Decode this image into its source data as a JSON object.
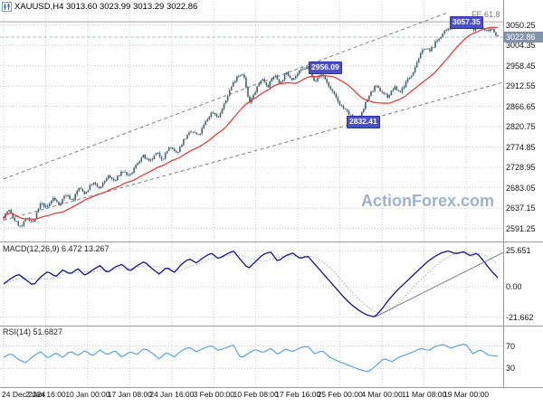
{
  "header": {
    "symbol_line": "XAUUSD,H4 3013.60 3023.99 3013.29 3022.86",
    "fib_label": "FE 61.8"
  },
  "watermark": "ActionForex.com",
  "colors": {
    "background": "#ffffff",
    "grid": "#cccccc",
    "candle": "#44606e",
    "ma": "#e53030",
    "macd": "#13118a",
    "macd_signal": "#9aa8c8",
    "rsi": "#5aa2dc",
    "trendline": "#7f7f7f",
    "separator": "#999999",
    "fib_line": "#a6a6a6",
    "current_line": "#b4bcc9",
    "flag_bg": "#4c50c8",
    "flag_border": "#2d2da8",
    "current_badge_bg": "#8292a8",
    "watermark_color": "#9fb3c8"
  },
  "chart_data": [
    {
      "type": "candlestick",
      "symbol": "XAUUSD",
      "timeframe": "H4",
      "last_candle": {
        "open": 3013.6,
        "high": 3023.99,
        "low": 3013.29,
        "close": 3022.86
      },
      "current_price": "3022.86",
      "y_axis": {
        "min": 2562,
        "max": 3078,
        "ticks": [
          "3050.25",
          "3004.35",
          "2958.45",
          "2912.55",
          "2866.65",
          "2820.75",
          "2774.85",
          "2728.95",
          "2683.05",
          "2637.15",
          "2591.25"
        ]
      },
      "x_axis": {
        "labels": [
          "24 Dec 2024",
          "2 Jan 16:00",
          "10 Jan 00:00",
          "17 Jan 08:00",
          "24 Jan 16:00",
          "3 Feb 00:00",
          "10 Feb 08:00",
          "17 Feb 16:00",
          "25 Feb 00:00",
          "4 Mar 00:00",
          "11 Mar 08:00",
          "19 Mar 00:00"
        ]
      },
      "close_path": [
        [
          0,
          2618
        ],
        [
          0.01,
          2634
        ],
        [
          0.022,
          2610
        ],
        [
          0.035,
          2594
        ],
        [
          0.048,
          2615
        ],
        [
          0.06,
          2605
        ],
        [
          0.075,
          2648
        ],
        [
          0.088,
          2638
        ],
        [
          0.1,
          2660
        ],
        [
          0.112,
          2645
        ],
        [
          0.125,
          2668
        ],
        [
          0.14,
          2655
        ],
        [
          0.152,
          2683
        ],
        [
          0.165,
          2670
        ],
        [
          0.18,
          2695
        ],
        [
          0.195,
          2680
        ],
        [
          0.21,
          2710
        ],
        [
          0.225,
          2698
        ],
        [
          0.24,
          2722
        ],
        [
          0.255,
          2708
        ],
        [
          0.27,
          2738
        ],
        [
          0.282,
          2755
        ],
        [
          0.295,
          2740
        ],
        [
          0.31,
          2762
        ],
        [
          0.322,
          2748
        ],
        [
          0.335,
          2775
        ],
        [
          0.35,
          2760
        ],
        [
          0.365,
          2792
        ],
        [
          0.38,
          2810
        ],
        [
          0.395,
          2800
        ],
        [
          0.408,
          2830
        ],
        [
          0.422,
          2855
        ],
        [
          0.435,
          2842
        ],
        [
          0.448,
          2875
        ],
        [
          0.458,
          2905
        ],
        [
          0.472,
          2935
        ],
        [
          0.485,
          2942
        ],
        [
          0.497,
          2872
        ],
        [
          0.51,
          2902
        ],
        [
          0.522,
          2930
        ],
        [
          0.535,
          2912
        ],
        [
          0.548,
          2938
        ],
        [
          0.56,
          2918
        ],
        [
          0.572,
          2942
        ],
        [
          0.585,
          2928
        ],
        [
          0.6,
          2946
        ],
        [
          0.615,
          2956
        ],
        [
          0.63,
          2924
        ],
        [
          0.645,
          2940
        ],
        [
          0.66,
          2908
        ],
        [
          0.68,
          2872
        ],
        [
          0.7,
          2848
        ],
        [
          0.715,
          2833
        ],
        [
          0.728,
          2862
        ],
        [
          0.74,
          2892
        ],
        [
          0.752,
          2912
        ],
        [
          0.765,
          2900
        ],
        [
          0.778,
          2888
        ],
        [
          0.79,
          2910
        ],
        [
          0.802,
          2898
        ],
        [
          0.815,
          2922
        ],
        [
          0.828,
          2944
        ],
        [
          0.84,
          2976
        ],
        [
          0.852,
          3000
        ],
        [
          0.862,
          2990
        ],
        [
          0.875,
          3012
        ],
        [
          0.888,
          3030
        ],
        [
          0.9,
          3040
        ],
        [
          0.912,
          3047
        ],
        [
          0.925,
          3052
        ],
        [
          0.938,
          3057
        ],
        [
          0.95,
          3040
        ],
        [
          0.962,
          3050
        ],
        [
          0.975,
          3036
        ],
        [
          0.988,
          3044
        ],
        [
          1,
          3023
        ]
      ],
      "price_flags": [
        {
          "label": "3057.35",
          "t": 0.903
        },
        {
          "label": "2956.09",
          "t": 0.617
        },
        {
          "label": "2832.41",
          "t": 0.694
        }
      ],
      "channel_lines": [
        {
          "from": [
            0,
            2703
          ],
          "to": [
            0.908,
            3082
          ]
        },
        {
          "from": [
            0,
            2610
          ],
          "to": [
            1.011,
            2921
          ]
        }
      ],
      "fib_expansion": {
        "label": "FE 61.8",
        "price": 3057.35
      }
    },
    {
      "type": "line",
      "label": "MACD(12,26,9) 6.472 13.267",
      "name": "MACD(12,26,9)",
      "main_value": 6.472,
      "signal_value": 13.267,
      "y_axis": {
        "min": -25,
        "max": 29,
        "ticks": [
          "25.651",
          "0.00",
          "-21.662"
        ]
      },
      "path": [
        [
          0,
          2
        ],
        [
          0.015,
          6
        ],
        [
          0.03,
          9
        ],
        [
          0.045,
          5
        ],
        [
          0.06,
          1
        ],
        [
          0.075,
          7
        ],
        [
          0.09,
          11
        ],
        [
          0.105,
          7
        ],
        [
          0.12,
          12
        ],
        [
          0.135,
          9
        ],
        [
          0.15,
          13
        ],
        [
          0.165,
          8
        ],
        [
          0.18,
          12
        ],
        [
          0.195,
          15
        ],
        [
          0.21,
          10
        ],
        [
          0.225,
          14
        ],
        [
          0.24,
          16
        ],
        [
          0.255,
          11
        ],
        [
          0.27,
          15
        ],
        [
          0.285,
          18
        ],
        [
          0.3,
          13
        ],
        [
          0.315,
          9
        ],
        [
          0.33,
          14
        ],
        [
          0.345,
          10
        ],
        [
          0.36,
          16
        ],
        [
          0.375,
          20
        ],
        [
          0.39,
          17
        ],
        [
          0.405,
          21
        ],
        [
          0.42,
          24
        ],
        [
          0.435,
          20
        ],
        [
          0.45,
          23
        ],
        [
          0.465,
          25.5
        ],
        [
          0.48,
          19
        ],
        [
          0.495,
          13
        ],
        [
          0.51,
          18
        ],
        [
          0.525,
          23
        ],
        [
          0.54,
          25
        ],
        [
          0.555,
          18
        ],
        [
          0.57,
          22
        ],
        [
          0.585,
          24
        ],
        [
          0.6,
          20
        ],
        [
          0.615,
          22
        ],
        [
          0.63,
          16
        ],
        [
          0.645,
          10
        ],
        [
          0.66,
          4
        ],
        [
          0.675,
          -2
        ],
        [
          0.69,
          -8
        ],
        [
          0.705,
          -13
        ],
        [
          0.72,
          -17
        ],
        [
          0.735,
          -20
        ],
        [
          0.751,
          -21.5
        ],
        [
          0.765,
          -16
        ],
        [
          0.78,
          -9
        ],
        [
          0.795,
          -3
        ],
        [
          0.81,
          2
        ],
        [
          0.825,
          7
        ],
        [
          0.84,
          12
        ],
        [
          0.855,
          17
        ],
        [
          0.87,
          21
        ],
        [
          0.885,
          24
        ],
        [
          0.9,
          25.5
        ],
        [
          0.915,
          23.5
        ],
        [
          0.93,
          25
        ],
        [
          0.945,
          22
        ],
        [
          0.958,
          24
        ],
        [
          0.97,
          19
        ],
        [
          0.985,
          12
        ],
        [
          1,
          6.5
        ]
      ],
      "trendline": {
        "from": [
          0.751,
          -21.5
        ],
        "to": [
          1.02,
          26
        ]
      }
    },
    {
      "type": "line",
      "label": "RSI(14) 51.6827",
      "name": "RSI(14)",
      "value": 51.6827,
      "y_axis": {
        "min": 0,
        "max": 100,
        "ticks": [
          "70",
          "30"
        ]
      },
      "path": [
        [
          0,
          50
        ],
        [
          0.015,
          57
        ],
        [
          0.03,
          46
        ],
        [
          0.045,
          40
        ],
        [
          0.06,
          52
        ],
        [
          0.075,
          60
        ],
        [
          0.09,
          48
        ],
        [
          0.105,
          58
        ],
        [
          0.12,
          50
        ],
        [
          0.135,
          61
        ],
        [
          0.15,
          53
        ],
        [
          0.165,
          62
        ],
        [
          0.18,
          52
        ],
        [
          0.195,
          63
        ],
        [
          0.21,
          54
        ],
        [
          0.225,
          62
        ],
        [
          0.24,
          50
        ],
        [
          0.255,
          60
        ],
        [
          0.27,
          55
        ],
        [
          0.285,
          66
        ],
        [
          0.3,
          58
        ],
        [
          0.315,
          47
        ],
        [
          0.33,
          59
        ],
        [
          0.345,
          50
        ],
        [
          0.36,
          62
        ],
        [
          0.375,
          68
        ],
        [
          0.39,
          60
        ],
        [
          0.405,
          66
        ],
        [
          0.42,
          71
        ],
        [
          0.435,
          62
        ],
        [
          0.45,
          67
        ],
        [
          0.465,
          72
        ],
        [
          0.48,
          48
        ],
        [
          0.495,
          57
        ],
        [
          0.51,
          64
        ],
        [
          0.525,
          58
        ],
        [
          0.54,
          66
        ],
        [
          0.555,
          55
        ],
        [
          0.57,
          65
        ],
        [
          0.585,
          60
        ],
        [
          0.6,
          67
        ],
        [
          0.615,
          70
        ],
        [
          0.63,
          56
        ],
        [
          0.645,
          62
        ],
        [
          0.66,
          50
        ],
        [
          0.68,
          42
        ],
        [
          0.7,
          35
        ],
        [
          0.72,
          28
        ],
        [
          0.738,
          24
        ],
        [
          0.755,
          36
        ],
        [
          0.77,
          48
        ],
        [
          0.785,
          42
        ],
        [
          0.8,
          50
        ],
        [
          0.815,
          55
        ],
        [
          0.83,
          60
        ],
        [
          0.845,
          66
        ],
        [
          0.86,
          62
        ],
        [
          0.875,
          70
        ],
        [
          0.89,
          73
        ],
        [
          0.905,
          66
        ],
        [
          0.92,
          71
        ],
        [
          0.935,
          74
        ],
        [
          0.95,
          56
        ],
        [
          0.965,
          64
        ],
        [
          0.98,
          54
        ],
        [
          1,
          51.7
        ]
      ]
    }
  ]
}
